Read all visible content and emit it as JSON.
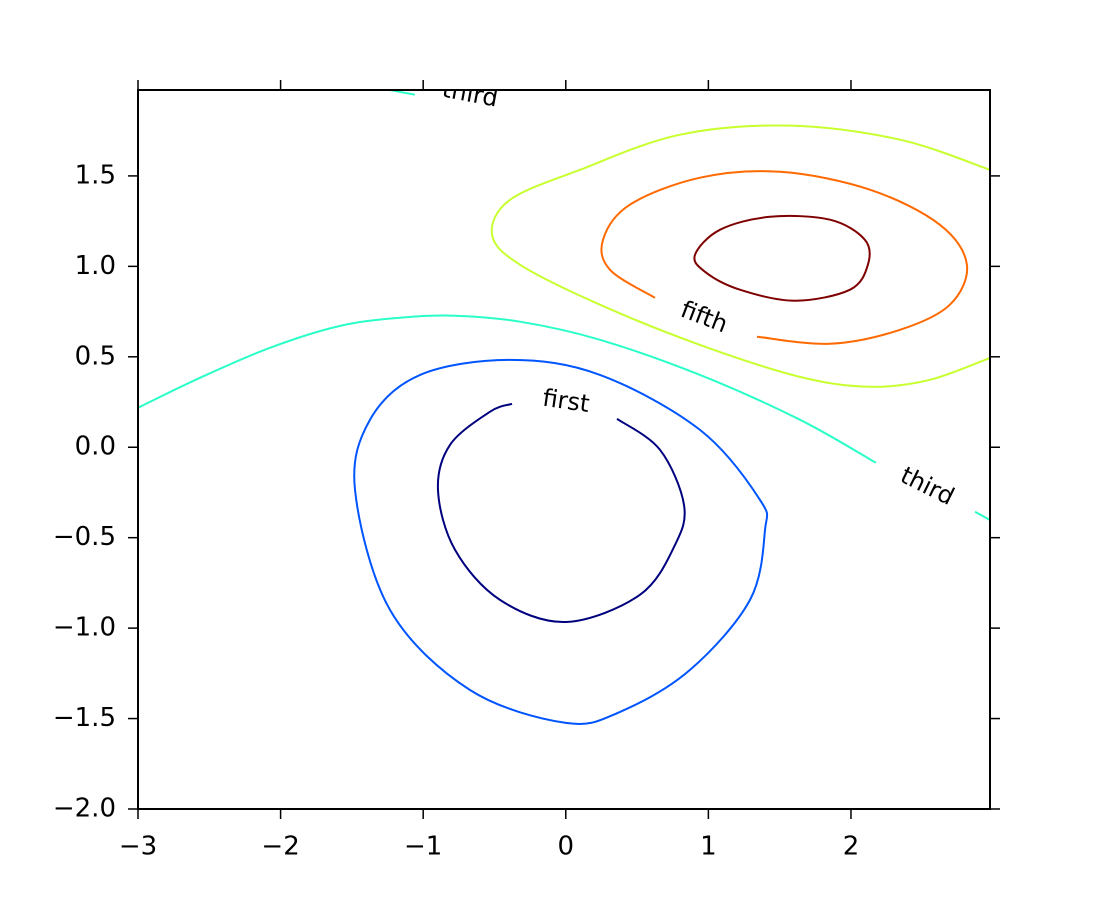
{
  "chart_data": {
    "type": "contour",
    "xlim": [
      -3,
      2.975
    ],
    "ylim": [
      -2,
      1.975
    ],
    "xticks": [
      {
        "value": -3,
        "label": "−3"
      },
      {
        "value": -2,
        "label": "−2"
      },
      {
        "value": -1,
        "label": "−1"
      },
      0,
      1,
      2
    ],
    "yticks": [
      {
        "value": -2,
        "label": "−2.0"
      },
      {
        "value": -1.5,
        "label": "−1.5"
      },
      {
        "value": -1,
        "label": "−1.0"
      },
      {
        "value": -0.5,
        "label": "−0.5"
      },
      {
        "value": 0,
        "label": "0.0"
      },
      0.5,
      {
        "value": 1,
        "label": "1.0"
      },
      1.5
    ],
    "contours": [
      {
        "color": "#00007f",
        "x": [
          0.359,
          0.661,
          0.829,
          0.766,
          0.52,
          0.001,
          -0.461,
          -0.777,
          -0.896,
          -0.812,
          -0.532,
          -0.377
        ],
        "y": [
          0.157,
          -0.014,
          -0.319,
          -0.54,
          -0.816,
          -0.966,
          -0.844,
          -0.567,
          -0.236,
          0.013,
          0.196,
          0.24
        ],
        "labels": [
          {
            "text": "first",
            "x": 0.001,
            "y": 0.251
          }
        ]
      },
      {
        "color": "#0055ff",
        "x": [
          0.001,
          -0.672,
          -1.233,
          -1.478,
          -1.373,
          -1.022,
          -0.391,
          0.24,
          0.941,
          1.362,
          1.397,
          1.292,
          0.871,
          0.38,
          0.001
        ],
        "y": [
          -1.524,
          -1.342,
          -0.899,
          -0.236,
          0.152,
          0.4,
          0.483,
          0.4,
          0.096,
          -0.291,
          -0.457,
          -0.844,
          -1.231,
          -1.463,
          -1.524
        ]
      },
      {
        "color": "#2affc8",
        "x": [
          -3,
          -2.565,
          -2.074,
          -1.583,
          -1.163,
          -0.777,
          -0.321,
          0.24,
          0.941,
          1.642,
          2.175,
          null,
          2.87,
          2.975
        ],
        "y": [
          0.218,
          0.384,
          0.55,
          0.671,
          0.716,
          0.727,
          0.694,
          0.594,
          0.4,
          0.152,
          -0.086,
          null,
          -0.357,
          -0.402
        ],
        "labels": [
          {
            "text": "third",
            "x": 2.533,
            "y": -0.219
          }
        ]
      },
      {
        "color": "#2affc8",
        "x": [
          -1.247,
          -1.058
        ],
        "y": [
          1.977,
          1.949
        ],
        "labels": [
          {
            "text": "third",
            "x": -0.672,
            "y": 1.949
          }
        ]
      },
      {
        "color": "#c8ff2f",
        "x": [
          2.975,
          2.344,
          1.572,
          0.801,
          0.1,
          -0.391,
          -0.517,
          -0.321,
          0.24,
          0.941,
          1.642,
          2.133,
          2.554,
          2.975
        ],
        "y": [
          1.534,
          1.7,
          1.778,
          1.728,
          1.534,
          1.368,
          1.175,
          1.009,
          0.788,
          0.566,
          0.389,
          0.334,
          0.373,
          0.494
        ]
      },
      {
        "color": "#ff6a00",
        "x": [
          0.626,
          0.31,
          0.261,
          0.45,
          0.941,
          1.502,
          2.133,
          2.624,
          2.813,
          2.694,
          2.344,
          1.853,
          1.341
        ],
        "y": [
          0.826,
          0.981,
          1.147,
          1.341,
          1.49,
          1.523,
          1.424,
          1.23,
          1.009,
          0.788,
          0.649,
          0.572,
          0.611
        ],
        "labels": [
          {
            "text": "fifth",
            "x": 0.969,
            "y": 0.716
          }
        ]
      },
      {
        "color": "#7f0000",
        "x": [
          0.906,
          1.081,
          1.432,
          1.853,
          2.098,
          2.119,
          1.993,
          1.607,
          1.221,
          0.976,
          0.906
        ],
        "y": [
          1.064,
          1.202,
          1.274,
          1.258,
          1.147,
          1.009,
          0.871,
          0.81,
          0.871,
          0.97,
          1.064
        ]
      }
    ]
  }
}
